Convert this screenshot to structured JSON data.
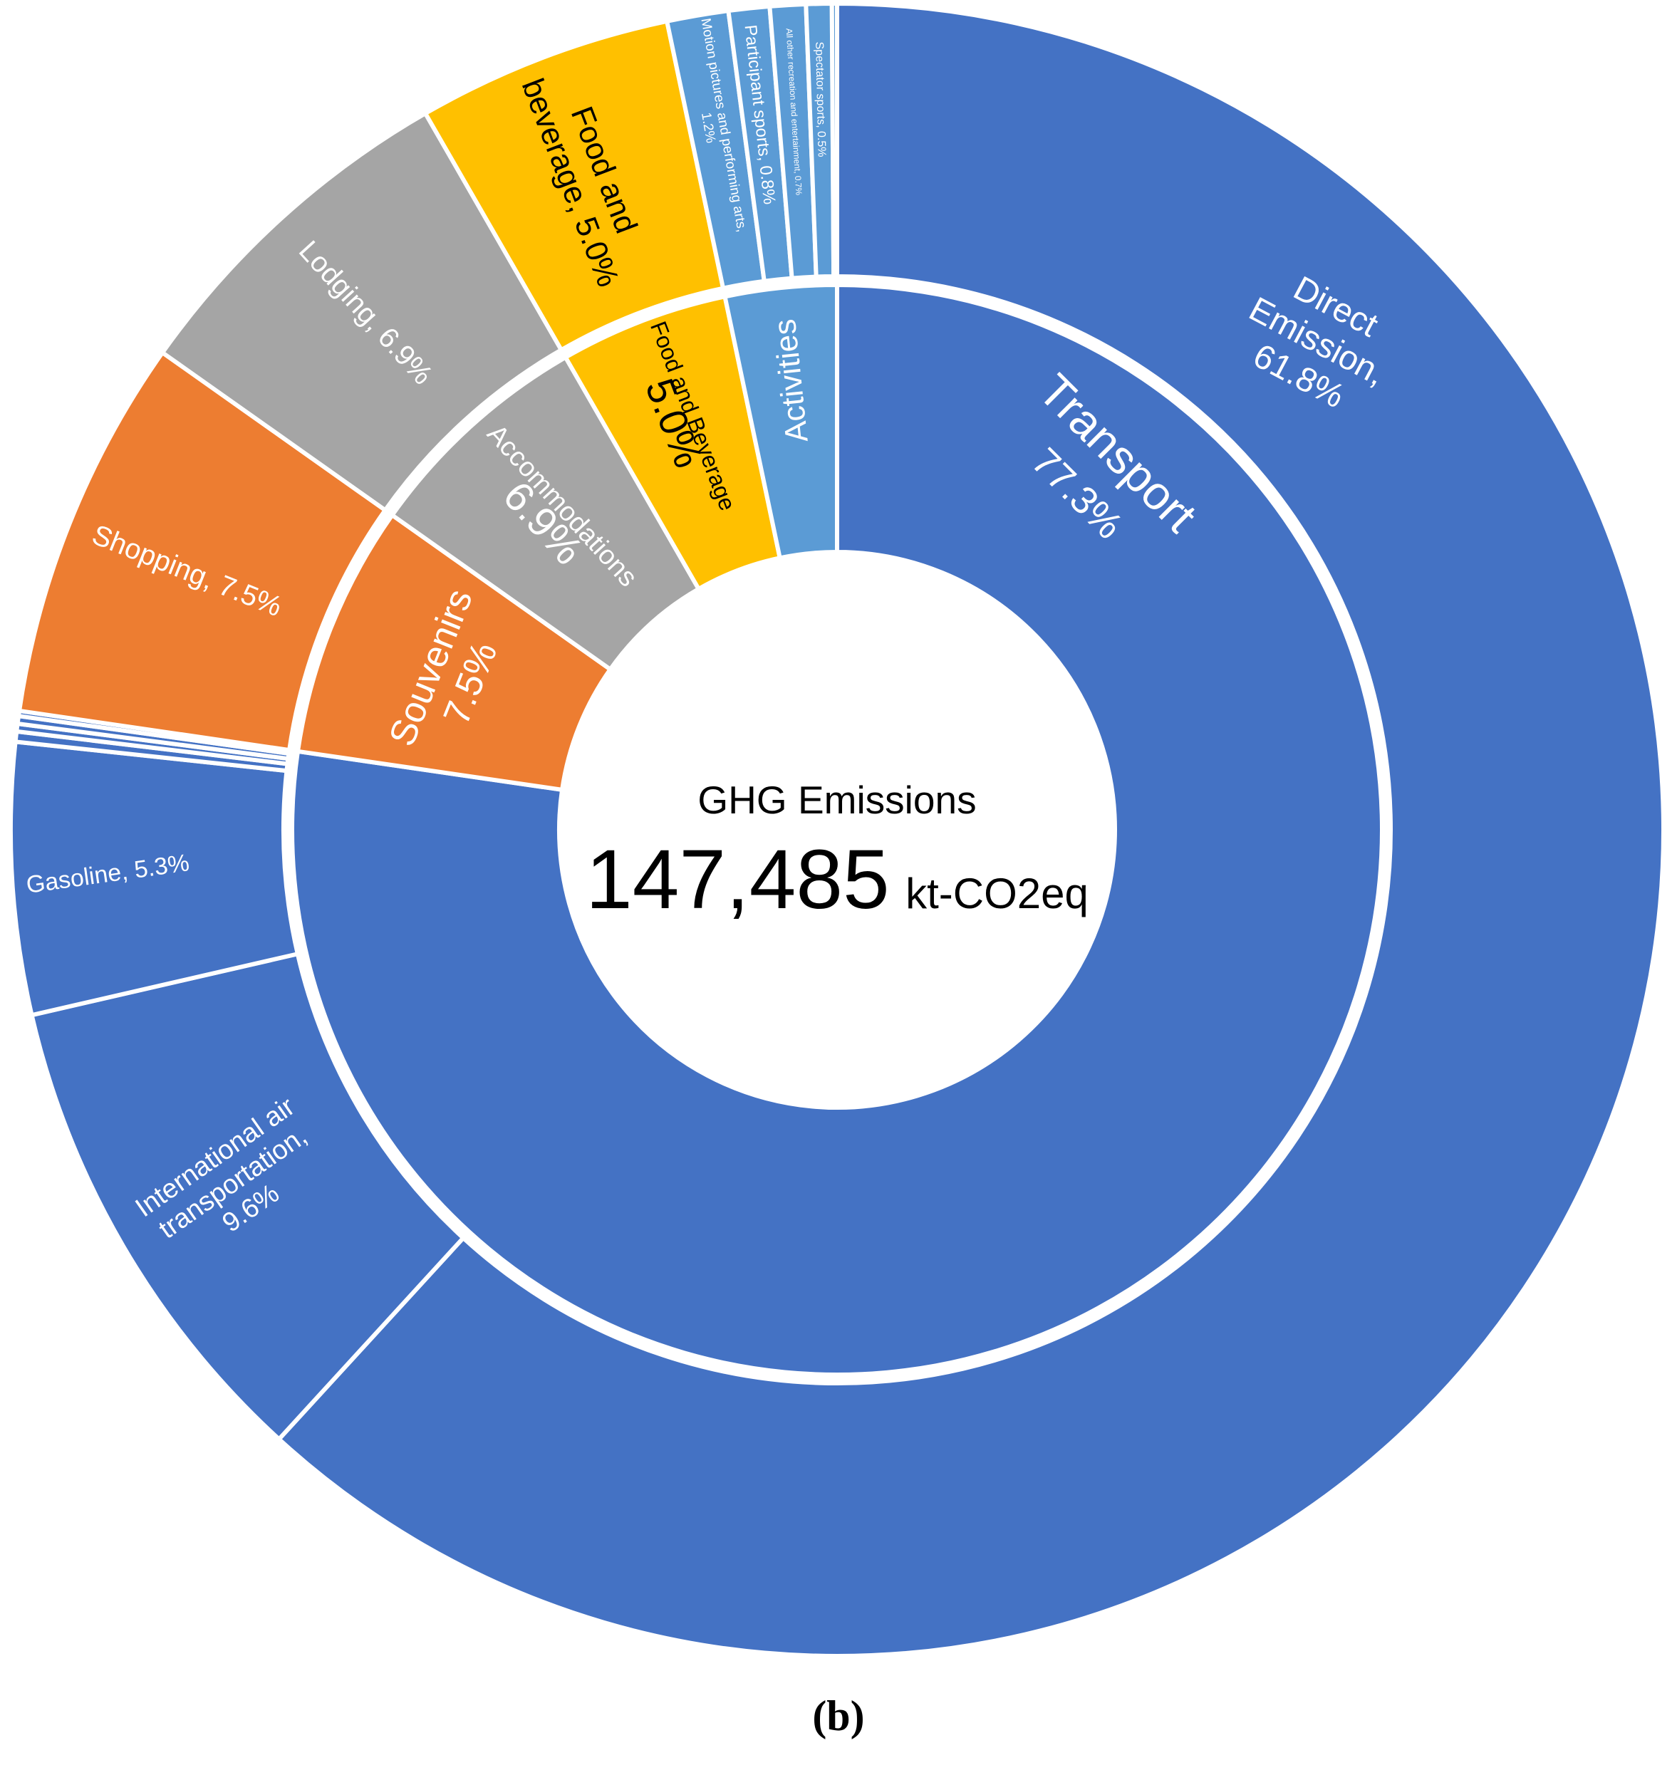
{
  "center": {
    "label": "GHG Emissions",
    "value": "147,485",
    "unit": "kt-CO2eq"
  },
  "caption": "(b)",
  "colors": {
    "transport": "#4472C4",
    "activities": "#5B9BD5",
    "food": "#FFC000",
    "accommodations": "#A5A5A5",
    "souvenirs": "#ED7D31",
    "separator": "#FFFFFF"
  },
  "chart_data": {
    "type": "sunburst",
    "title": "GHG Emissions",
    "total": 147485,
    "unit": "kt-CO2eq",
    "inner_ring": [
      {
        "name": "Transport",
        "line1": "Transport",
        "line2": "77.3%",
        "value": 77.3,
        "color": "#4472C4"
      },
      {
        "name": "Souvenirs",
        "line1": "Souvenirs",
        "line2": "7.5%",
        "value": 7.5,
        "color": "#ED7D31"
      },
      {
        "name": "Accommodations",
        "line1": "Accommodations",
        "line2": "6.9%",
        "value": 6.9,
        "color": "#A5A5A5"
      },
      {
        "name": "Food and Beverage",
        "line1": "Food and Beverage",
        "line2": "5.0%",
        "value": 5.0,
        "color": "#FFC000"
      },
      {
        "name": "Activities",
        "line1": "Activities",
        "line2": "",
        "value": 3.3,
        "color": "#5B9BD5"
      }
    ],
    "outer_ring": [
      {
        "parent": "Transport",
        "lines": [
          "Direct",
          "Emission,",
          "61.8%"
        ],
        "value": 61.8,
        "color": "#4472C4"
      },
      {
        "parent": "Transport",
        "lines": [
          "International air",
          "transportation,",
          "9.6%"
        ],
        "value": 9.6,
        "color": "#4472C4"
      },
      {
        "parent": "Transport",
        "lines": [
          "Gasoline, 5.3%"
        ],
        "value": 5.3,
        "color": "#4472C4"
      },
      {
        "parent": "Transport",
        "lines": [],
        "value": 0.2,
        "color": "#4472C4"
      },
      {
        "parent": "Transport",
        "lines": [],
        "value": 0.15,
        "color": "#4472C4"
      },
      {
        "parent": "Transport",
        "lines": [],
        "value": 0.15,
        "color": "#4472C4"
      },
      {
        "parent": "Transport",
        "lines": [],
        "value": 0.1,
        "color": "#4472C4"
      },
      {
        "parent": "Souvenirs",
        "lines": [
          "Shopping, 7.5%"
        ],
        "value": 7.5,
        "color": "#ED7D31"
      },
      {
        "parent": "Accommodations",
        "lines": [
          "Lodging, 6.9%"
        ],
        "value": 6.9,
        "color": "#A5A5A5"
      },
      {
        "parent": "Food and Beverage",
        "lines": [
          "Food and",
          "beverage, 5.0%"
        ],
        "value": 5.0,
        "color": "#FFC000"
      },
      {
        "parent": "Activities",
        "lines": [
          "Motion pictures and performing arts,",
          "1.2%"
        ],
        "value": 1.2,
        "color": "#5B9BD5"
      },
      {
        "parent": "Activities",
        "lines": [
          "Participant sports, 0.8%"
        ],
        "value": 0.8,
        "color": "#5B9BD5"
      },
      {
        "parent": "Activities",
        "lines": [
          "All other recreation and entertainment, 0.7%"
        ],
        "value": 0.7,
        "color": "#5B9BD5"
      },
      {
        "parent": "Activities",
        "lines": [
          "Spectator sports, 0.5%"
        ],
        "value": 0.5,
        "color": "#5B9BD5"
      },
      {
        "parent": "Activities",
        "lines": [],
        "value": 0.1,
        "color": "#5B9BD5"
      }
    ]
  }
}
